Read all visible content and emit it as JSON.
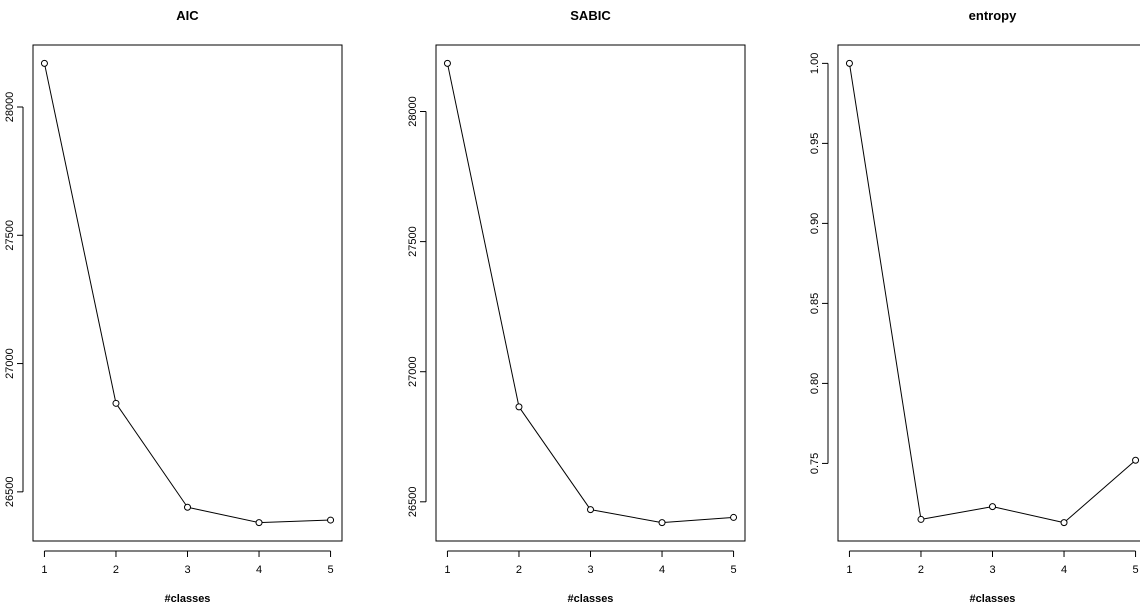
{
  "chart_data": [
    {
      "type": "line",
      "title": "AIC",
      "xlabel": "#classes",
      "ylabel": "",
      "x": [
        1,
        2,
        3,
        4,
        5
      ],
      "values": [
        28170,
        26845,
        26440,
        26380,
        26390
      ],
      "x_ticks": [
        "1",
        "2",
        "3",
        "4",
        "5"
      ],
      "y_ticks": [
        "26500",
        "27000",
        "27500",
        "28000"
      ],
      "xlim": [
        1,
        5
      ],
      "ylim": [
        26380,
        28170
      ],
      "grid": false,
      "markers": "open-circle",
      "color": "#000000"
    },
    {
      "type": "line",
      "title": "SABIC",
      "xlabel": "#classes",
      "ylabel": "",
      "x": [
        1,
        2,
        3,
        4,
        5
      ],
      "values": [
        28185,
        26865,
        26470,
        26420,
        26440
      ],
      "x_ticks": [
        "1",
        "2",
        "3",
        "4",
        "5"
      ],
      "y_ticks": [
        "26500",
        "27000",
        "27500",
        "28000"
      ],
      "xlim": [
        1,
        5
      ],
      "ylim": [
        26420,
        28185
      ],
      "grid": false,
      "markers": "open-circle",
      "color": "#000000"
    },
    {
      "type": "line",
      "title": "entropy",
      "xlabel": "#classes",
      "ylabel": "",
      "x": [
        1,
        2,
        3,
        4,
        5
      ],
      "values": [
        1.0,
        0.715,
        0.723,
        0.713,
        0.752
      ],
      "x_ticks": [
        "1",
        "2",
        "3",
        "4",
        "5"
      ],
      "y_ticks": [
        "0.75",
        "0.80",
        "0.85",
        "0.90",
        "0.95",
        "1.00"
      ],
      "xlim": [
        1,
        5
      ],
      "ylim": [
        0.713,
        1.0
      ],
      "grid": false,
      "markers": "open-circle",
      "color": "#000000"
    }
  ]
}
